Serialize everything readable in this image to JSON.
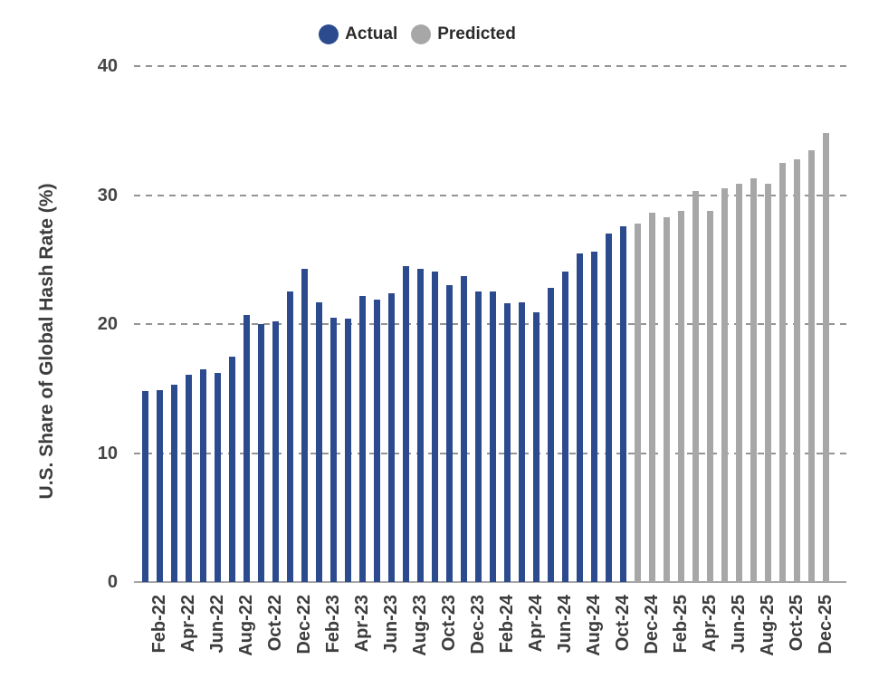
{
  "chart_data": {
    "type": "bar",
    "title": "",
    "ylabel": "U.S. Share of Global Hash Rate (%)",
    "xlabel": "",
    "ylim": [
      0,
      40
    ],
    "yticks": [
      0,
      10,
      20,
      30,
      40
    ],
    "grid": "horizontal dashed gridlines at 10/20/30/40, solid gray axis line at 0",
    "x_labels_shown_every": 2,
    "x_labels_shown": [
      "Feb-22",
      "Apr-22",
      "Jun-22",
      "Aug-22",
      "Oct-22",
      "Dec-22",
      "Feb-23",
      "Apr-23",
      "Jun-23",
      "Aug-23",
      "Oct-23",
      "Dec-23",
      "Feb-24",
      "Apr-24",
      "Jun-24",
      "Aug-24",
      "Oct-24",
      "Dec-24",
      "Feb-25",
      "Apr-25",
      "Jun-25",
      "Aug-25",
      "Oct-25",
      "Dec-25"
    ],
    "categories": [
      "Jan-22",
      "Feb-22",
      "Mar-22",
      "Apr-22",
      "May-22",
      "Jun-22",
      "Jul-22",
      "Aug-22",
      "Sep-22",
      "Oct-22",
      "Nov-22",
      "Dec-22",
      "Jan-23",
      "Feb-23",
      "Mar-23",
      "Apr-23",
      "May-23",
      "Jun-23",
      "Jul-23",
      "Aug-23",
      "Sep-23",
      "Oct-23",
      "Nov-23",
      "Dec-23",
      "Jan-24",
      "Feb-24",
      "Mar-24",
      "Apr-24",
      "May-24",
      "Jun-24",
      "Jul-24",
      "Aug-24",
      "Sep-24",
      "Oct-24",
      "Nov-24",
      "Dec-24",
      "Jan-25",
      "Feb-25",
      "Mar-25",
      "Apr-25",
      "May-25",
      "Jun-25",
      "Jul-25",
      "Aug-25",
      "Sep-25",
      "Oct-25",
      "Nov-25",
      "Dec-25"
    ],
    "series": [
      {
        "name": "Actual",
        "color": "#2C4B8E",
        "values": [
          14.8,
          14.9,
          15.3,
          16.1,
          16.5,
          16.2,
          17.5,
          20.7,
          20.0,
          20.2,
          22.5,
          24.3,
          21.7,
          20.5,
          20.4,
          22.2,
          21.9,
          22.4,
          24.5,
          24.3,
          24.1,
          23.0,
          23.7,
          22.5,
          22.5,
          21.6,
          21.7,
          20.9,
          22.8,
          24.1,
          25.5,
          25.6,
          27.0,
          27.6,
          null,
          null,
          null,
          null,
          null,
          null,
          null,
          null,
          null,
          null,
          null,
          null,
          null,
          null
        ]
      },
      {
        "name": "Predicted",
        "color": "#A7A7A7",
        "values": [
          null,
          null,
          null,
          null,
          null,
          null,
          null,
          null,
          null,
          null,
          null,
          null,
          null,
          null,
          null,
          null,
          null,
          null,
          null,
          null,
          null,
          null,
          null,
          null,
          null,
          null,
          null,
          null,
          null,
          null,
          null,
          null,
          null,
          null,
          27.8,
          28.6,
          28.3,
          28.8,
          30.3,
          28.8,
          30.5,
          30.9,
          31.3,
          30.9,
          32.5,
          32.8,
          33.5,
          34.8
        ]
      }
    ],
    "legend": {
      "position": "top-center",
      "entries": [
        {
          "label": "Actual",
          "color": "#2C4B8E"
        },
        {
          "label": "Predicted",
          "color": "#A7A7A7"
        }
      ]
    }
  },
  "colors": {
    "background": "#ffffff",
    "gridline": "#949494",
    "axis_line": "#a6a6a6",
    "tick_text": "#454545",
    "label_text": "#3d3d3d",
    "legend_text": "#2b2b2b"
  }
}
